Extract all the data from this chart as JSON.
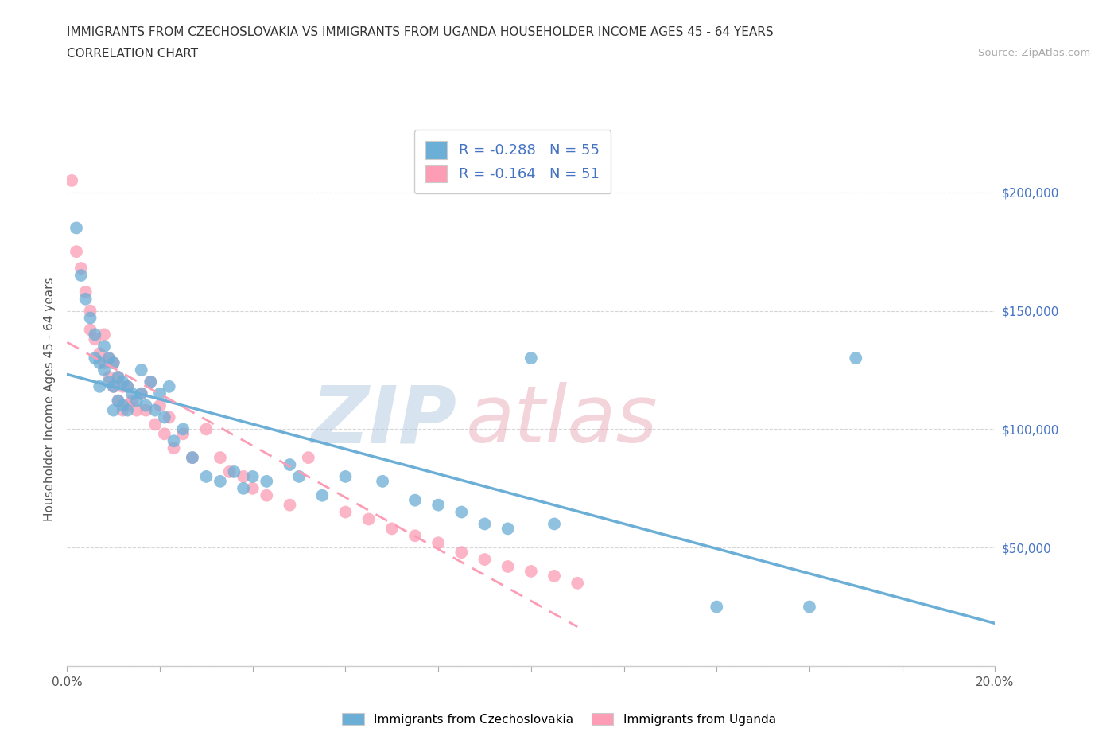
{
  "title_line1": "IMMIGRANTS FROM CZECHOSLOVAKIA VS IMMIGRANTS FROM UGANDA HOUSEHOLDER INCOME AGES 45 - 64 YEARS",
  "title_line2": "CORRELATION CHART",
  "source_text": "Source: ZipAtlas.com",
  "ylabel": "Householder Income Ages 45 - 64 years",
  "xlim": [
    0.0,
    0.2
  ],
  "ylim": [
    0,
    225000
  ],
  "xticks": [
    0.0,
    0.02,
    0.04,
    0.06,
    0.08,
    0.1,
    0.12,
    0.14,
    0.16,
    0.18,
    0.2
  ],
  "yticks": [
    0,
    50000,
    100000,
    150000,
    200000
  ],
  "czech_color": "#6baed6",
  "uganda_color": "#fc9db5",
  "czech_R": -0.288,
  "czech_N": 55,
  "uganda_R": -0.164,
  "uganda_N": 51,
  "legend_label_czech": "Immigrants from Czechoslovakia",
  "legend_label_uganda": "Immigrants from Uganda",
  "czech_x": [
    0.002,
    0.003,
    0.004,
    0.005,
    0.006,
    0.006,
    0.007,
    0.007,
    0.008,
    0.008,
    0.009,
    0.009,
    0.01,
    0.01,
    0.01,
    0.011,
    0.011,
    0.012,
    0.012,
    0.013,
    0.013,
    0.014,
    0.015,
    0.016,
    0.016,
    0.017,
    0.018,
    0.019,
    0.02,
    0.021,
    0.022,
    0.023,
    0.025,
    0.027,
    0.03,
    0.033,
    0.036,
    0.038,
    0.04,
    0.043,
    0.048,
    0.05,
    0.055,
    0.06,
    0.068,
    0.075,
    0.08,
    0.085,
    0.09,
    0.095,
    0.1,
    0.105,
    0.14,
    0.16,
    0.17
  ],
  "czech_y": [
    185000,
    165000,
    155000,
    147000,
    140000,
    130000,
    128000,
    118000,
    135000,
    125000,
    130000,
    120000,
    128000,
    118000,
    108000,
    122000,
    112000,
    120000,
    110000,
    118000,
    108000,
    115000,
    112000,
    125000,
    115000,
    110000,
    120000,
    108000,
    115000,
    105000,
    118000,
    95000,
    100000,
    88000,
    80000,
    78000,
    82000,
    75000,
    80000,
    78000,
    85000,
    80000,
    72000,
    80000,
    78000,
    70000,
    68000,
    65000,
    60000,
    58000,
    130000,
    60000,
    25000,
    25000,
    130000
  ],
  "uganda_x": [
    0.001,
    0.002,
    0.003,
    0.004,
    0.005,
    0.005,
    0.006,
    0.007,
    0.008,
    0.008,
    0.009,
    0.009,
    0.01,
    0.01,
    0.011,
    0.011,
    0.012,
    0.012,
    0.013,
    0.013,
    0.014,
    0.015,
    0.016,
    0.017,
    0.018,
    0.019,
    0.02,
    0.021,
    0.022,
    0.023,
    0.025,
    0.027,
    0.03,
    0.033,
    0.035,
    0.038,
    0.04,
    0.043,
    0.048,
    0.052,
    0.06,
    0.065,
    0.07,
    0.075,
    0.08,
    0.085,
    0.09,
    0.095,
    0.1,
    0.105,
    0.11
  ],
  "uganda_y": [
    205000,
    175000,
    168000,
    158000,
    150000,
    142000,
    138000,
    132000,
    140000,
    128000,
    130000,
    122000,
    128000,
    118000,
    122000,
    112000,
    118000,
    108000,
    118000,
    110000,
    112000,
    108000,
    115000,
    108000,
    120000,
    102000,
    110000,
    98000,
    105000,
    92000,
    98000,
    88000,
    100000,
    88000,
    82000,
    80000,
    75000,
    72000,
    68000,
    88000,
    65000,
    62000,
    58000,
    55000,
    52000,
    48000,
    45000,
    42000,
    40000,
    38000,
    35000
  ]
}
